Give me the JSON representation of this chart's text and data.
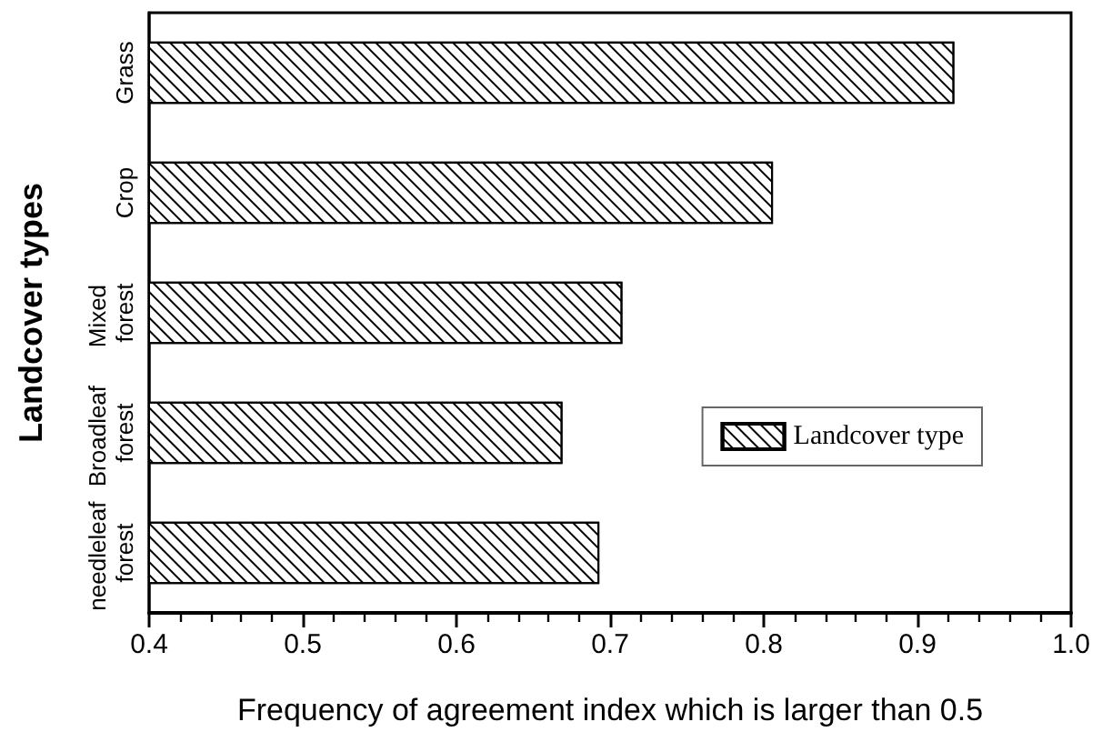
{
  "chart_data": {
    "type": "bar",
    "orientation": "horizontal",
    "xlabel": "Frequency of agreement index which is larger than 0.5",
    "ylabel": "Landcover types",
    "categories": [
      "Grass",
      "Crop",
      "Mixed forest",
      "Broadleaf forest",
      "needleleaf forest"
    ],
    "series": [
      {
        "name": "Landcover type",
        "color": "#000000",
        "values": [
          0.924,
          0.806,
          0.708,
          0.669,
          0.693
        ]
      }
    ],
    "xlim": [
      0.4,
      1.0
    ],
    "xticks": [
      0.4,
      {
        "value": 0.42,
        "label": null
      },
      {
        "value": 0.44,
        "label": null
      },
      {
        "value": 0.46,
        "label": null
      },
      {
        "value": 0.48,
        "label": null
      },
      0.5,
      {
        "value": 0.52,
        "label": null
      },
      {
        "value": 0.54,
        "label": null
      },
      {
        "value": 0.56,
        "label": null
      },
      {
        "value": 0.58,
        "label": null
      },
      0.6,
      {
        "value": 0.62,
        "label": null
      },
      {
        "value": 0.64,
        "label": null
      },
      {
        "value": 0.66,
        "label": null
      },
      {
        "value": 0.68,
        "label": null
      },
      0.7,
      {
        "value": 0.72,
        "label": null
      },
      {
        "value": 0.74,
        "label": null
      },
      {
        "value": 0.76,
        "label": null
      },
      {
        "value": 0.78,
        "label": null
      },
      0.8,
      {
        "value": 0.82,
        "label": null
      },
      {
        "value": 0.84,
        "label": null
      },
      {
        "value": 0.86,
        "label": null
      },
      {
        "value": 0.88,
        "label": null
      },
      0.9,
      {
        "value": 0.92,
        "label": null
      },
      {
        "value": 0.94,
        "label": null
      },
      {
        "value": 0.96,
        "label": null
      },
      {
        "value": 0.98,
        "label": null
      },
      {
        "value": 1,
        "label": "1.0"
      }
    ],
    "grid": false,
    "legend": "right"
  }
}
